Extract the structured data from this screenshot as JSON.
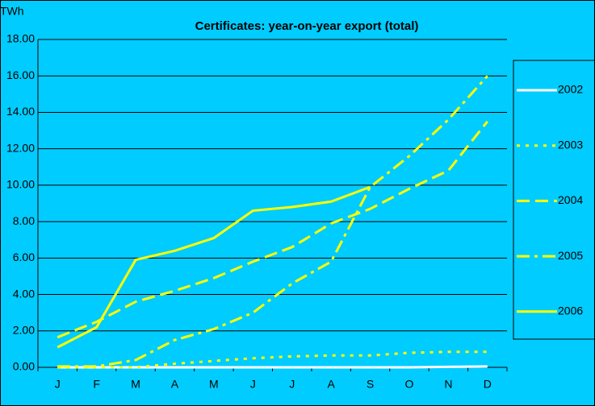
{
  "chart_data": {
    "type": "line",
    "title": "Certificates: year-on-year export (total)",
    "y_label": "TWh",
    "categories": [
      "J",
      "F",
      "M",
      "A",
      "M",
      "J",
      "J",
      "A",
      "S",
      "O",
      "N",
      "D"
    ],
    "series": [
      {
        "name": "2002",
        "color": "#ffffff",
        "dash": "solid",
        "values": [
          0,
          0,
          0,
          0,
          0,
          0,
          0,
          0,
          0,
          0,
          0.03,
          0.05
        ]
      },
      {
        "name": "2003",
        "color": "#ffff00",
        "dash": "dotted",
        "values": [
          0,
          0,
          0,
          0.2,
          0.35,
          0.5,
          0.6,
          0.65,
          0.65,
          0.8,
          0.85,
          0.85
        ]
      },
      {
        "name": "2004",
        "color": "#ffff00",
        "dash": "dashed",
        "values": [
          1.65,
          2.5,
          3.6,
          4.2,
          4.9,
          5.8,
          6.6,
          7.9,
          8.7,
          9.8,
          10.8,
          13.5
        ]
      },
      {
        "name": "2005",
        "color": "#ffff00",
        "dash": "dashdot",
        "values": [
          0.05,
          0.05,
          0.4,
          1.5,
          2.1,
          3.0,
          4.6,
          5.8,
          9.9,
          11.6,
          13.6,
          16.0
        ]
      },
      {
        "name": "2006",
        "color": "#ffff00",
        "dash": "solid",
        "values": [
          1.1,
          2.2,
          5.9,
          6.4,
          7.1,
          8.6,
          8.8,
          9.1,
          9.9,
          null,
          null,
          null
        ]
      }
    ],
    "ylim": [
      0,
      18
    ],
    "yticks": [
      {
        "value": 0,
        "label": "0.00"
      },
      {
        "value": 2,
        "label": "2.00"
      },
      {
        "value": 4,
        "label": "4.00"
      },
      {
        "value": 6,
        "label": "6.00"
      },
      {
        "value": 8,
        "label": "8.00"
      },
      {
        "value": 10,
        "label": "10.00"
      },
      {
        "value": 12,
        "label": "12.00"
      },
      {
        "value": 14,
        "label": "14.00"
      },
      {
        "value": 16,
        "label": "16.00"
      },
      {
        "value": 18,
        "label": "18.00"
      }
    ],
    "grid": true,
    "legend": "right",
    "background": "#00ccff"
  }
}
